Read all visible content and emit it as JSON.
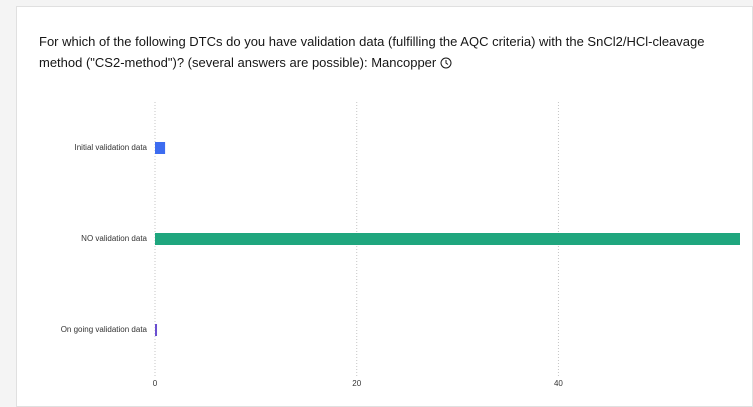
{
  "chart_data": {
    "type": "hbar",
    "title": "For which of the following DTCs do you have validation data (fulfilling the AQC criteria) with the SnCl2/HCl-cleavage method (\"CS2-method\")? (several answers are possible): Mancopper",
    "categories": [
      "Initial validation data",
      "NO validation data",
      "On going validation data"
    ],
    "values": [
      1,
      58,
      0.2
    ],
    "colors": [
      "#3d6cf0",
      "#1fa67e",
      "#6a4fd1"
    ],
    "xlim": [
      0,
      58
    ],
    "xticks": [
      0,
      20,
      40
    ],
    "grid": true
  }
}
